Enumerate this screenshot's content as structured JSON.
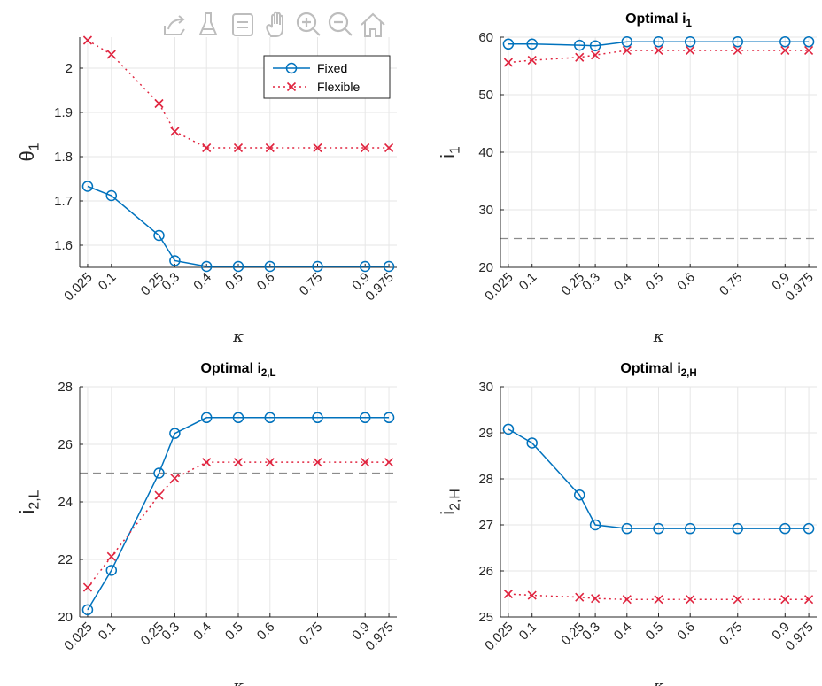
{
  "toolbar": {
    "icons": [
      "export-icon",
      "brush-icon",
      "datatip-icon",
      "pan-hand-icon",
      "zoom-in-icon",
      "zoom-out-icon",
      "home-icon"
    ],
    "color": "#bdbdbd"
  },
  "colors": {
    "fixed": "#0072BD",
    "flexible": "#E0243F",
    "reference": "#8c8c8c",
    "grid": "#e6e6e6",
    "axis": "#262626"
  },
  "chart_data": [
    {
      "type": "line",
      "id": "theta1",
      "title": "",
      "title_main": "",
      "title_sub": "",
      "ylabel_main": "θ",
      "ylabel_sub": "1",
      "xlabel": "κ",
      "x": [
        0.025,
        0.1,
        0.25,
        0.3,
        0.4,
        0.5,
        0.6,
        0.75,
        0.9,
        0.975
      ],
      "xtick_labels": [
        "0.025",
        "0.1",
        "0.25",
        "0.3",
        "0.4",
        "0.5",
        "0.6",
        "0.75",
        "0.9",
        "0.975"
      ],
      "xlim": [
        0.0,
        1.0
      ],
      "ylim": [
        1.55,
        2.07
      ],
      "yticks": [
        1.6,
        1.7,
        1.8,
        1.9,
        2.0
      ],
      "ytick_labels": [
        "1.6",
        "1.7",
        "1.8",
        "1.9",
        "2"
      ],
      "grid": true,
      "legend": "top-right",
      "series": [
        {
          "name": "Fixed",
          "style": "fixed",
          "values": [
            1.733,
            1.712,
            1.622,
            1.565,
            1.552,
            1.552,
            1.552,
            1.552,
            1.552,
            1.552
          ]
        },
        {
          "name": "Flexible",
          "style": "flexible",
          "values": [
            2.063,
            2.031,
            1.92,
            1.857,
            1.82,
            1.82,
            1.82,
            1.82,
            1.82,
            1.82
          ]
        }
      ]
    },
    {
      "type": "line",
      "id": "i1",
      "title": "",
      "title_main": "Optimal i",
      "title_sub": "1",
      "ylabel_main": "i",
      "ylabel_sub": "1",
      "xlabel": "κ",
      "x": [
        0.025,
        0.1,
        0.25,
        0.3,
        0.4,
        0.5,
        0.6,
        0.75,
        0.9,
        0.975
      ],
      "xtick_labels": [
        "0.025",
        "0.1",
        "0.25",
        "0.3",
        "0.4",
        "0.5",
        "0.6",
        "0.75",
        "0.9",
        "0.975"
      ],
      "xlim": [
        0.0,
        1.0
      ],
      "ylim": [
        20,
        60
      ],
      "yticks": [
        20,
        30,
        40,
        50,
        60
      ],
      "ytick_labels": [
        "20",
        "30",
        "40",
        "50",
        "60"
      ],
      "reference_line": 25,
      "grid": true,
      "series": [
        {
          "style": "fixed",
          "values": [
            58.8,
            58.8,
            58.6,
            58.5,
            59.2,
            59.2,
            59.2,
            59.2,
            59.2,
            59.2
          ]
        },
        {
          "style": "flexible",
          "values": [
            55.6,
            56.0,
            56.5,
            56.9,
            57.7,
            57.7,
            57.7,
            57.7,
            57.7,
            57.7
          ]
        }
      ]
    },
    {
      "type": "line",
      "id": "i2L",
      "title": "",
      "title_main": "Optimal i",
      "title_sub": "2,L",
      "ylabel_main": "i",
      "ylabel_sub": "2,L",
      "xlabel": "κ",
      "x": [
        0.025,
        0.1,
        0.25,
        0.3,
        0.4,
        0.5,
        0.6,
        0.75,
        0.9,
        0.975
      ],
      "xtick_labels": [
        "0.025",
        "0.1",
        "0.25",
        "0.3",
        "0.4",
        "0.5",
        "0.6",
        "0.75",
        "0.9",
        "0.975"
      ],
      "xlim": [
        0.0,
        1.0
      ],
      "ylim": [
        20,
        28
      ],
      "yticks": [
        20,
        22,
        24,
        26,
        28
      ],
      "ytick_labels": [
        "20",
        "22",
        "24",
        "26",
        "28"
      ],
      "reference_line": 25,
      "grid": true,
      "series": [
        {
          "style": "fixed",
          "values": [
            20.25,
            21.62,
            25.0,
            26.38,
            26.93,
            26.93,
            26.93,
            26.93,
            26.93,
            26.93
          ]
        },
        {
          "style": "flexible",
          "values": [
            21.03,
            22.1,
            24.23,
            24.82,
            25.38,
            25.38,
            25.38,
            25.38,
            25.38,
            25.38
          ]
        }
      ]
    },
    {
      "type": "line",
      "id": "i2H",
      "title": "",
      "title_main": "Optimal i",
      "title_sub": "2,H",
      "ylabel_main": "i",
      "ylabel_sub": "2,H",
      "xlabel": "κ",
      "x": [
        0.025,
        0.1,
        0.25,
        0.3,
        0.4,
        0.5,
        0.6,
        0.75,
        0.9,
        0.975
      ],
      "xtick_labels": [
        "0.025",
        "0.1",
        "0.25",
        "0.3",
        "0.4",
        "0.5",
        "0.6",
        "0.75",
        "0.9",
        "0.975"
      ],
      "xlim": [
        0.0,
        1.0
      ],
      "ylim": [
        25,
        30
      ],
      "yticks": [
        25,
        26,
        27,
        28,
        29,
        30
      ],
      "ytick_labels": [
        "25",
        "26",
        "27",
        "28",
        "29",
        "30"
      ],
      "grid": true,
      "series": [
        {
          "style": "fixed",
          "values": [
            29.08,
            28.78,
            27.65,
            27.0,
            26.92,
            26.92,
            26.92,
            26.92,
            26.92,
            26.92
          ]
        },
        {
          "style": "flexible",
          "values": [
            25.5,
            25.47,
            25.43,
            25.4,
            25.38,
            25.38,
            25.38,
            25.38,
            25.38,
            25.38
          ]
        }
      ]
    }
  ]
}
